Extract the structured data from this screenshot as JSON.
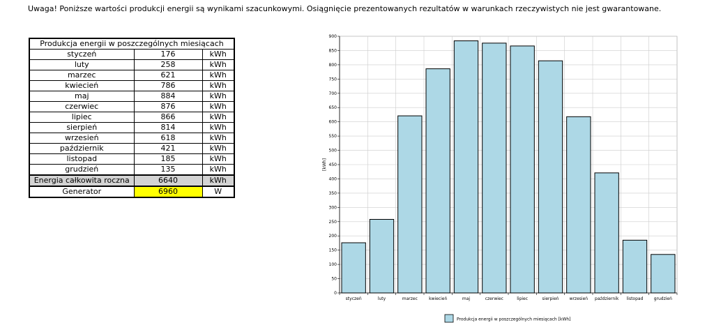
{
  "notice": "Uwaga! Poniższe wartości produkcji energii są wynikami szacunkowymi. Osiągnięcie prezentowanych rezultatów w warunkach rzeczywistych nie jest gwarantowane.",
  "table": {
    "header": "Produkcja energii w poszczególnych miesiącach",
    "rows": [
      {
        "month": "styczeń",
        "value": "176",
        "unit": "kWh"
      },
      {
        "month": "luty",
        "value": "258",
        "unit": "kWh"
      },
      {
        "month": "marzec",
        "value": "621",
        "unit": "kWh"
      },
      {
        "month": "kwiecień",
        "value": "786",
        "unit": "kWh"
      },
      {
        "month": "maj",
        "value": "884",
        "unit": "kWh"
      },
      {
        "month": "czerwiec",
        "value": "876",
        "unit": "kWh"
      },
      {
        "month": "lipiec",
        "value": "866",
        "unit": "kWh"
      },
      {
        "month": "sierpień",
        "value": "814",
        "unit": "kWh"
      },
      {
        "month": "wrzesień",
        "value": "618",
        "unit": "kWh"
      },
      {
        "month": "październik",
        "value": "421",
        "unit": "kWh"
      },
      {
        "month": "listopad",
        "value": "185",
        "unit": "kWh"
      },
      {
        "month": "grudzień",
        "value": "135",
        "unit": "kWh"
      }
    ],
    "total": {
      "label": "Energia całkowita roczna",
      "value": "6640",
      "unit": "kWh"
    },
    "generator": {
      "label": "Generator",
      "value": "6960",
      "unit": "W"
    }
  },
  "chart_data": {
    "type": "bar",
    "categories": [
      "styczeń",
      "luty",
      "marzec",
      "kwiecień",
      "maj",
      "czerwiec",
      "lipiec",
      "sierpień",
      "wrzesień",
      "październik",
      "listopad",
      "grudzień"
    ],
    "series": [
      {
        "name": "Produkcja energii w poszczególnych miesiącach [kWh]",
        "values": [
          176,
          258,
          621,
          786,
          884,
          876,
          866,
          814,
          618,
          421,
          185,
          135
        ]
      }
    ],
    "ylabel": "[kWh]",
    "ylim": [
      0,
      900
    ],
    "yticks": [
      0,
      50,
      100,
      150,
      200,
      250,
      300,
      350,
      400,
      450,
      500,
      550,
      600,
      650,
      700,
      750,
      800,
      850,
      900
    ],
    "grid": true,
    "legend_position": "bottom",
    "bar_color": "#add8e6"
  }
}
